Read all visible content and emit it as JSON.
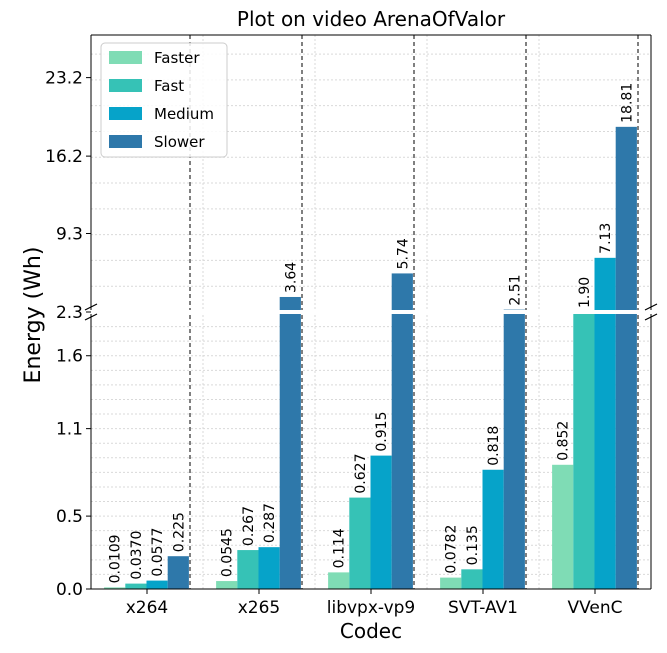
{
  "chart_data": {
    "type": "bar",
    "title": "Plot on video ArenaOfValor",
    "xlabel": "Codec",
    "ylabel": "Energy (Wh)",
    "categories": [
      "x264",
      "x265",
      "libvpx-vp9",
      "SVT-AV1",
      "VVenC"
    ],
    "series": [
      {
        "name": "Faster",
        "color": "#7fdcb5",
        "values": [
          0.0109,
          0.0545,
          0.114,
          0.0782,
          0.852
        ],
        "labels": [
          "0.0109",
          "0.0545",
          "0.114",
          "0.0782",
          "0.852"
        ]
      },
      {
        "name": "Fast",
        "color": "#36c2b6",
        "values": [
          0.037,
          0.267,
          0.627,
          0.135,
          1.9
        ],
        "labels": [
          "0.0370",
          "0.267",
          "0.627",
          "0.135",
          "1.90"
        ]
      },
      {
        "name": "Medium",
        "color": "#06a3c9",
        "values": [
          0.0577,
          0.287,
          0.915,
          0.818,
          7.13
        ],
        "labels": [
          "0.0577",
          "0.287",
          "0.915",
          "0.818",
          "7.13"
        ]
      },
      {
        "name": "Slower",
        "color": "#2e78aa",
        "values": [
          0.225,
          3.64,
          5.74,
          2.51,
          18.81
        ],
        "labels": [
          "0.225",
          "3.64",
          "5.74",
          "2.51",
          "18.81"
        ]
      }
    ],
    "broken_axis": true,
    "lower_ylim": [
      0,
      1.9
    ],
    "upper_ylim": [
      2.3,
      27
    ],
    "lower_ticks": [
      "0.0",
      "0.5",
      "1.1",
      "1.6"
    ],
    "upper_ticks": [
      "2.3",
      "9.3",
      "16.2",
      "23.2"
    ],
    "grid": true,
    "legend_position": "upper-left"
  }
}
